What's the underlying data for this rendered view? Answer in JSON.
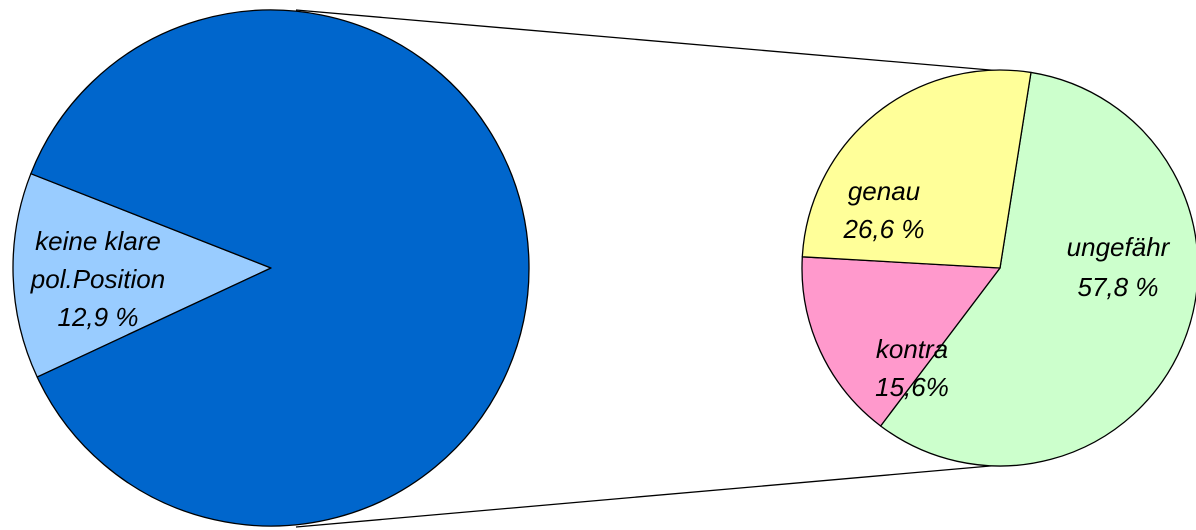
{
  "chart_data": [
    {
      "type": "pie",
      "role": "main",
      "slices": [
        {
          "label_lines": [
            "keine klare",
            "pol.Position",
            "12,9 %"
          ],
          "value": 12.9,
          "color": "#99ccff"
        },
        {
          "label_lines": [],
          "value": 87.1,
          "color": "#0066cc"
        }
      ]
    },
    {
      "type": "pie",
      "role": "detail",
      "slices": [
        {
          "label_lines": [
            "ungefähr",
            "57,8 %"
          ],
          "value": 57.8,
          "color": "#ccffcc"
        },
        {
          "label_lines": [
            "kontra",
            "15,6%"
          ],
          "value": 15.6,
          "color": "#ff99cc"
        },
        {
          "label_lines": [
            "genau",
            "26,6 %"
          ],
          "value": 26.6,
          "color": "#ffff99"
        }
      ]
    }
  ]
}
